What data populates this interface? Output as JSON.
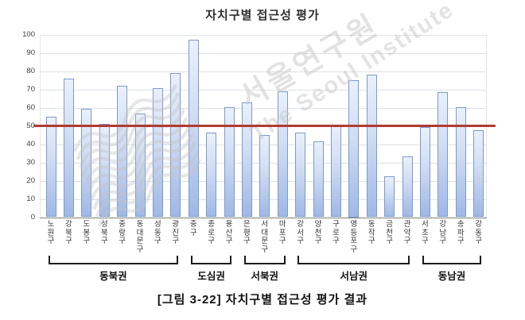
{
  "figure": {
    "caption": "[그림 3-22] 자치구별 접근성 평가 결과"
  },
  "watermark": {
    "korean": "서울연구원",
    "english": "The Seoul Institute"
  },
  "colors": {
    "bar_fill_top": "#eaf0fb",
    "bar_fill_bottom": "#a0b8e6",
    "bar_border": "#7d9aca",
    "reference_line": "#b23a31",
    "gridline": "#dde1e7",
    "axis_line": "#7e7e7e",
    "watermark_gray": "#c6c6c6"
  },
  "chart_data": {
    "type": "bar",
    "title": "자치구별 접근성 평가",
    "xlabel": "",
    "ylabel": "",
    "ylim": [
      0,
      100
    ],
    "ytick_step": 10,
    "grid": true,
    "legend_position": "none",
    "reference_line_y": 50,
    "categories": [
      "노원구",
      "강북구",
      "도봉구",
      "성북구",
      "중랑구",
      "동대문구",
      "성동구",
      "광진구",
      "중구",
      "종로구",
      "용산구",
      "은평구",
      "서대문구",
      "마포구",
      "강서구",
      "양천구",
      "구로구",
      "영등포구",
      "동작구",
      "금천구",
      "관악구",
      "서초구",
      "강남구",
      "송파구",
      "강동구"
    ],
    "values": [
      55,
      76,
      59.5,
      51,
      72,
      57,
      71,
      79,
      97.5,
      46.5,
      60.5,
      63,
      45,
      69,
      46.5,
      41.5,
      50.5,
      75,
      78,
      22.5,
      33.5,
      49.5,
      68.5,
      60.5,
      47.5
    ],
    "groups": [
      {
        "label": "동북권",
        "from": 0,
        "to": 7
      },
      {
        "label": "도심권",
        "from": 8,
        "to": 10
      },
      {
        "label": "서북권",
        "from": 11,
        "to": 13
      },
      {
        "label": "서남권",
        "from": 14,
        "to": 20
      },
      {
        "label": "동남권",
        "from": 21,
        "to": 24
      }
    ]
  }
}
